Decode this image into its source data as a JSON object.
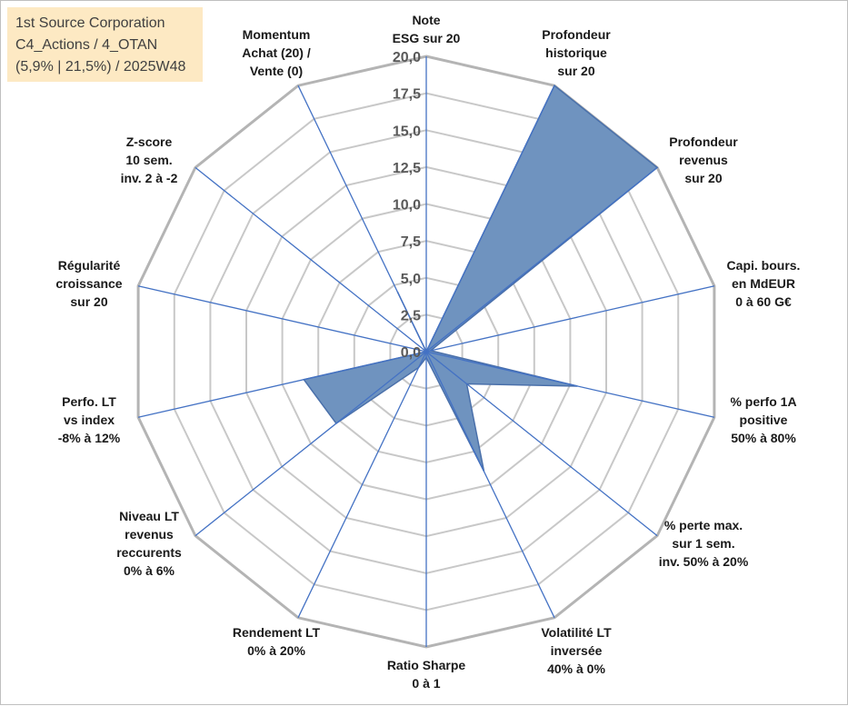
{
  "info_box": {
    "line1": "1st Source Corporation",
    "line2": "C4_Actions / 4_OTAN",
    "line3": "(5,9% | 21,5%) / 2025W48"
  },
  "chart_data": {
    "type": "radar",
    "scale_min": 0,
    "scale_max": 20,
    "ticks": [
      "0,0",
      "2,5",
      "5,0",
      "7,5",
      "10,0",
      "12,5",
      "15,0",
      "17,5",
      "20,0"
    ],
    "axes": [
      {
        "label": "Note\nESG sur 20",
        "value": 0
      },
      {
        "label": "Profondeur\nhistorique\nsur 20",
        "value": 20
      },
      {
        "label": "Profondeur\nrevenus\nsur 20",
        "value": 20
      },
      {
        "label": "Capi. bours.\nen MdEUR\n0 à 60 G€",
        "value": 0.3
      },
      {
        "label": "% perfo 1A\npositive\n50% à 80%",
        "value": 10.5
      },
      {
        "label": "% perte max.\nsur 1 sem.\ninv. 50% à 20%",
        "value": 3.5
      },
      {
        "label": "Volatilité LT\ninversée\n40% à 0%",
        "value": 9.0
      },
      {
        "label": "Ratio Sharpe\n0 à 1",
        "value": 0.4
      },
      {
        "label": "Rendement LT\n0% à 20%",
        "value": 1.2
      },
      {
        "label": "Niveau LT\nrevenus\nreccurents\n0% à 6%",
        "value": 7.8
      },
      {
        "label": "Perfo. LT\nvs index\n-8% à 12%",
        "value": 8.5
      },
      {
        "label": "Régularité\ncroissance\nsur 20",
        "value": 0
      },
      {
        "label": "Z-score\n10 sem.\ninv. 2 à -2",
        "value": 0
      },
      {
        "label": "Momentum\nAchat (20) /\nVente (0)",
        "value": 4.5
      }
    ],
    "fill_color": "#6f93bf",
    "line_color": "#4a70aa",
    "axis_line_color": "#4472c4",
    "grid_color": "#c8c8c8",
    "outer_grid_color": "#b4b4b4"
  }
}
